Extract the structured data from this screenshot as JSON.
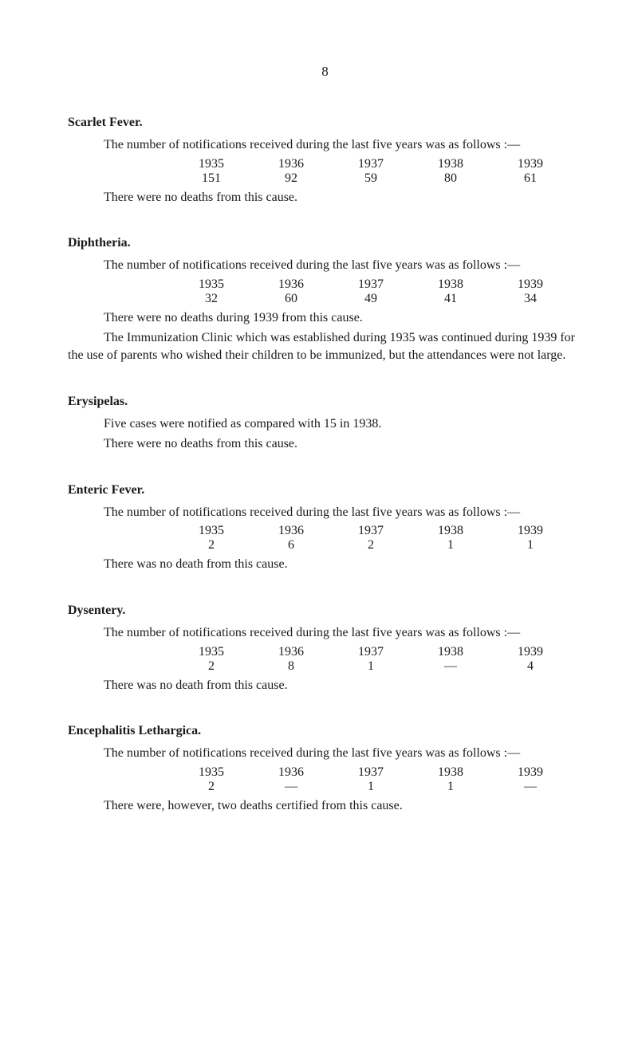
{
  "page_number": "8",
  "sections": {
    "scarlet_fever": {
      "title": "Scarlet Fever.",
      "intro": "The number of notifications received during the last five years was as follows :—",
      "years": [
        "1935",
        "1936",
        "1937",
        "1938",
        "1939"
      ],
      "values": [
        "151",
        "92",
        "59",
        "80",
        "61"
      ],
      "closing": "There were no deaths from this cause."
    },
    "diphtheria": {
      "title": "Diphtheria.",
      "intro": "The number of notifications received during the last five years was as follows :—",
      "years": [
        "1935",
        "1936",
        "1937",
        "1938",
        "1939"
      ],
      "values": [
        "32",
        "60",
        "49",
        "41",
        "34"
      ],
      "closing": "There were no deaths during 1939 from this cause.",
      "para2": "The Immunization Clinic which was established during 1935 was con­tinued during 1939 for the use of parents who wished their children to be immunized, but the attendances were not large."
    },
    "erysipelas": {
      "title": "Erysipelas.",
      "p1": "Five cases were notified as compared with 15 in 1938.",
      "p2": "There were no deaths from this cause."
    },
    "enteric_fever": {
      "title": "Enteric Fever.",
      "intro": "The number of notifications received during the last five years was as follows :—",
      "years": [
        "1935",
        "1936",
        "1937",
        "1938",
        "1939"
      ],
      "values": [
        "2",
        "6",
        "2",
        "1",
        "1"
      ],
      "closing": "There was no death from this cause."
    },
    "dysentery": {
      "title": "Dysentery.",
      "intro": "The number of notifications received during the last five years was as follows :—",
      "years": [
        "1935",
        "1936",
        "1937",
        "1938",
        "1939"
      ],
      "values": [
        "2",
        "8",
        "1",
        "—",
        "4"
      ],
      "closing": "There was no death from this cause."
    },
    "encephalitis": {
      "title": "Encephalitis Lethargica.",
      "intro": "The number of notifications received during the last five years was as follows :—",
      "years": [
        "1935",
        "1936",
        "1937",
        "1938",
        "1939"
      ],
      "values": [
        "2",
        "—",
        "1",
        "1",
        "—"
      ],
      "closing": "There were, however, two deaths certified from this cause."
    }
  }
}
